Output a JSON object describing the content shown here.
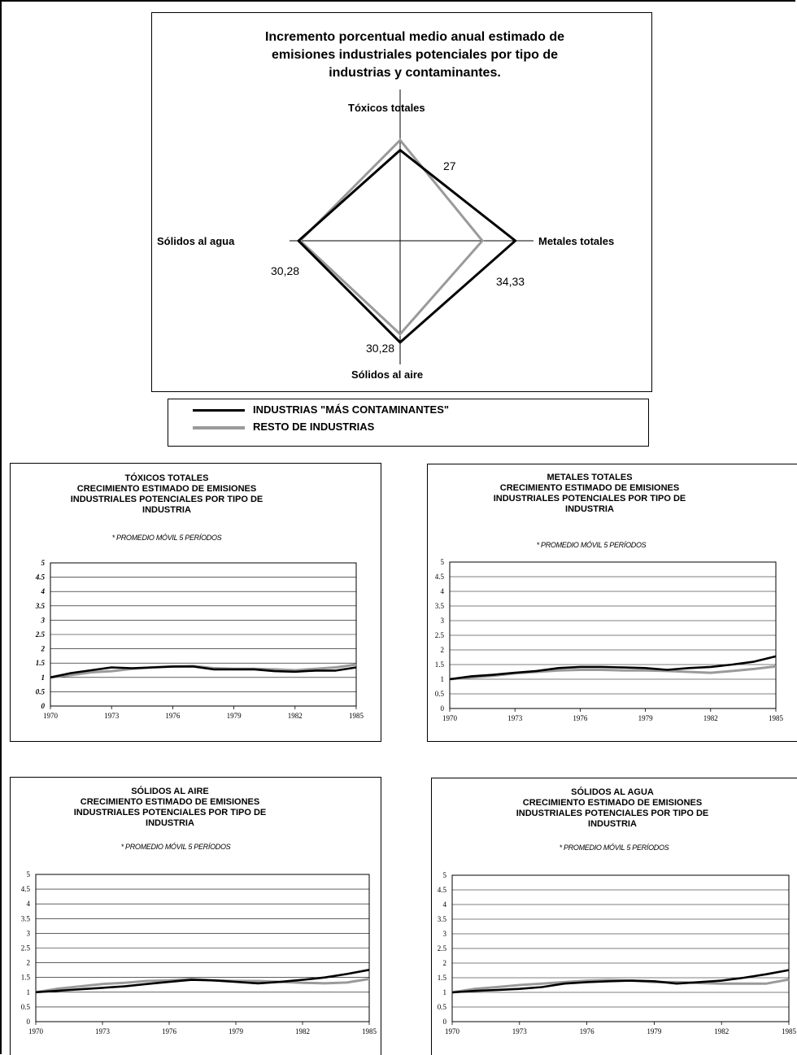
{
  "radar": {
    "title_lines": [
      "Incremento porcentual medio anual estimado de",
      "emisiones industriales potenciales por tipo de",
      "industrias y contaminantes."
    ],
    "axes": {
      "top": "Tóxicos totales",
      "right": "Metales totales",
      "bottom": "Sólidos al aire",
      "left": "Sólidos al agua"
    },
    "values_labels": {
      "top": "27",
      "right": "34,33",
      "bottom": "30,28",
      "left": "30,28"
    }
  },
  "legend": {
    "items": [
      {
        "label": "INDUSTRIAS \"MÁS CONTAMINANTES\"",
        "color": "#000000"
      },
      {
        "label": "RESTO DE INDUSTRIAS",
        "color": "#999999"
      }
    ]
  },
  "colors": {
    "series_main": "#000000",
    "series_rest": "#9a9a9a",
    "grid": "#000000"
  },
  "chart_data": [
    {
      "type": "radar",
      "axes": [
        "Tóxicos totales",
        "Metales totales",
        "Sólidos al aire",
        "Sólidos al agua"
      ],
      "series": [
        {
          "name": "INDUSTRIAS \"MÁS CONTAMINANTES\"",
          "values": [
            27,
            34.33,
            30.28,
            30.28
          ]
        },
        {
          "name": "RESTO DE INDUSTRIAS",
          "values": [
            30,
            24.5,
            27.8,
            29.8
          ]
        }
      ],
      "title": "Incremento porcentual medio anual estimado de emisiones industriales potenciales por tipo de industrias y contaminantes."
    },
    {
      "type": "line",
      "title_lines": [
        "TÓXICOS TOTALES",
        "CRECIMIENTO ESTIMADO DE EMISIONES",
        "INDUSTRIALES POTENCIALES POR TIPO DE",
        "INDUSTRIA"
      ],
      "note": "* PROMEDIO MÓVIL 5 PERÍODOS",
      "x": [
        1970,
        1971,
        1972,
        1973,
        1974,
        1975,
        1976,
        1977,
        1978,
        1979,
        1980,
        1981,
        1982,
        1983,
        1984,
        1985
      ],
      "xticks": [
        "1970",
        "1973",
        "1976",
        "1979",
        "1982",
        "1985"
      ],
      "yticks": [
        "0",
        "0.5",
        "1",
        "1.5",
        "2",
        "2.5",
        "3",
        "3.5",
        "4",
        "4.5",
        "5"
      ],
      "ylim": [
        0,
        5
      ],
      "series": [
        {
          "name": "INDUSTRIAS \"MÁS CONTAMINANTES\"",
          "values": [
            1,
            1.15,
            1.25,
            1.35,
            1.32,
            1.35,
            1.38,
            1.38,
            1.28,
            1.28,
            1.28,
            1.22,
            1.2,
            1.24,
            1.24,
            1.35
          ]
        },
        {
          "name": "RESTO DE INDUSTRIAS",
          "values": [
            1,
            1.08,
            1.18,
            1.22,
            1.3,
            1.35,
            1.38,
            1.4,
            1.32,
            1.3,
            1.3,
            1.28,
            1.25,
            1.3,
            1.35,
            1.45
          ]
        }
      ]
    },
    {
      "type": "line",
      "title_lines": [
        "METALES TOTALES",
        "CRECIMIENTO ESTIMADO DE EMISIONES",
        "INDUSTRIALES POTENCIALES POR TIPO DE",
        "INDUSTRIA"
      ],
      "note": "* PROMEDIO MÓVIL 5 PERÍODOS",
      "x": [
        1970,
        1971,
        1972,
        1973,
        1974,
        1975,
        1976,
        1977,
        1978,
        1979,
        1980,
        1981,
        1982,
        1983,
        1984,
        1985
      ],
      "xticks": [
        "1970",
        "1973",
        "1976",
        "1979",
        "1982",
        "1985"
      ],
      "yticks": [
        "0",
        "0.5",
        "1",
        "1.5",
        "2",
        "2.5",
        "3",
        "3.5",
        "4",
        "4.5",
        "5"
      ],
      "ylim": [
        0,
        5
      ],
      "series": [
        {
          "name": "INDUSTRIAS \"MÁS CONTAMINANTES\"",
          "values": [
            1,
            1.1,
            1.15,
            1.22,
            1.28,
            1.38,
            1.42,
            1.42,
            1.4,
            1.38,
            1.32,
            1.38,
            1.42,
            1.5,
            1.6,
            1.78
          ]
        },
        {
          "name": "RESTO DE INDUSTRIAS",
          "values": [
            1,
            1.06,
            1.12,
            1.2,
            1.25,
            1.3,
            1.32,
            1.32,
            1.3,
            1.3,
            1.28,
            1.25,
            1.22,
            1.28,
            1.35,
            1.44
          ]
        }
      ]
    },
    {
      "type": "line",
      "title_lines": [
        "SÓLIDOS AL AIRE",
        "CRECIMIENTO ESTIMADO DE EMISIONES",
        "INDUSTRIALES POTENCIALES POR TIPO DE",
        "INDUSTRIA"
      ],
      "note": "* PROMEDIO MÓVIL 5 PERÍODOS",
      "x": [
        1970,
        1971,
        1972,
        1973,
        1974,
        1975,
        1976,
        1977,
        1978,
        1979,
        1980,
        1981,
        1982,
        1983,
        1984,
        1985
      ],
      "xticks": [
        "1970",
        "1973",
        "1976",
        "1979",
        "1982",
        "1985"
      ],
      "yticks": [
        "0",
        "0.5",
        "1",
        "1.5",
        "2",
        "2.5",
        "3",
        "3.5",
        "4",
        "4.5",
        "5"
      ],
      "ylim": [
        0,
        5
      ],
      "series": [
        {
          "name": "INDUSTRIAS \"MÁS CONTAMINANTES\"",
          "values": [
            1,
            1.05,
            1.1,
            1.15,
            1.2,
            1.28,
            1.35,
            1.42,
            1.4,
            1.35,
            1.3,
            1.35,
            1.42,
            1.5,
            1.62,
            1.76
          ]
        },
        {
          "name": "RESTO DE INDUSTRIAS",
          "values": [
            1,
            1.12,
            1.2,
            1.28,
            1.32,
            1.38,
            1.4,
            1.45,
            1.4,
            1.38,
            1.38,
            1.35,
            1.32,
            1.3,
            1.33,
            1.45
          ]
        }
      ]
    },
    {
      "type": "line",
      "title_lines": [
        "SÓLIDOS AL AGUA",
        "CRECIMIENTO ESTIMADO DE EMISIONES",
        "INDUSTRIALES POTENCIALES POR TIPO DE",
        "INDUSTRIA"
      ],
      "note": "* PROMEDIO MÓVIL 5 PERÍODOS",
      "x": [
        1970,
        1971,
        1972,
        1973,
        1974,
        1975,
        1976,
        1977,
        1978,
        1979,
        1980,
        1981,
        1982,
        1983,
        1984,
        1985
      ],
      "xticks": [
        "1970",
        "1973",
        "1976",
        "1979",
        "1982",
        "1985"
      ],
      "yticks": [
        "0",
        "0.5",
        "1",
        "1.5",
        "2",
        "2.5",
        "3",
        "3.5",
        "4",
        "4.5",
        "5"
      ],
      "ylim": [
        0,
        5
      ],
      "series": [
        {
          "name": "INDUSTRIAS \"MÁS CONTAMINANTES\"",
          "values": [
            1,
            1.05,
            1.08,
            1.12,
            1.18,
            1.3,
            1.35,
            1.38,
            1.4,
            1.38,
            1.3,
            1.35,
            1.4,
            1.5,
            1.62,
            1.76
          ]
        },
        {
          "name": "RESTO DE INDUSTRIAS",
          "values": [
            1,
            1.12,
            1.18,
            1.25,
            1.3,
            1.35,
            1.4,
            1.42,
            1.4,
            1.35,
            1.35,
            1.32,
            1.3,
            1.3,
            1.3,
            1.44
          ]
        }
      ]
    }
  ]
}
